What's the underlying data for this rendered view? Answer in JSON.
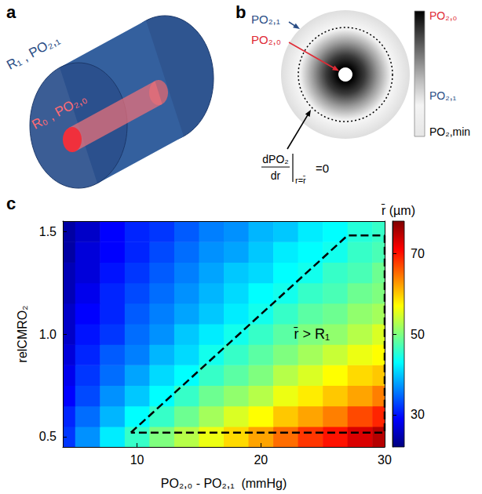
{
  "panel_a": {
    "label": "a",
    "outer_cylinder": "R₁ , PO₂,₁",
    "inner_cylinder": "R₀ , PO₂,₀"
  },
  "panel_b": {
    "label": "b",
    "outer_pointer": "PO₂,₁",
    "inner_pointer": "PO₂,₀",
    "derivative": {
      "numerator": "dPO₂",
      "denominator": "dr",
      "at": "r=r̄",
      "equals": "=0"
    },
    "colorbar_labels": [
      "PO₂,₀",
      "PO₂,₁",
      "PO₂,min"
    ]
  },
  "chart_data": {
    "label": "c",
    "type": "heatmap",
    "x_label": "PO₂,₀ - PO₂,₁  (mmHg)",
    "y_label": "relCMRO₂",
    "x": [
      4,
      6,
      8,
      10,
      12,
      14,
      16,
      18,
      20,
      22,
      24,
      26,
      28,
      30
    ],
    "y": [
      0.5,
      0.6,
      0.7,
      0.8,
      0.9,
      1.0,
      1.1,
      1.2,
      1.3,
      1.4,
      1.5
    ],
    "cells": [
      [
        32,
        37,
        42,
        46,
        50,
        53,
        56,
        59,
        62,
        65,
        68,
        70,
        73,
        75
      ],
      [
        31,
        35,
        39,
        43,
        46,
        49,
        52,
        55,
        57,
        60,
        62,
        64,
        67,
        69
      ],
      [
        29,
        33,
        37,
        40,
        43,
        46,
        49,
        51,
        53,
        56,
        58,
        60,
        62,
        64
      ],
      [
        28,
        32,
        35,
        38,
        41,
        43,
        46,
        48,
        50,
        53,
        55,
        57,
        59,
        60
      ],
      [
        27,
        31,
        34,
        36,
        39,
        41,
        44,
        46,
        48,
        50,
        52,
        54,
        56,
        57
      ],
      [
        26,
        30,
        32,
        35,
        37,
        40,
        42,
        44,
        46,
        48,
        50,
        51,
        53,
        55
      ],
      [
        26,
        29,
        31,
        34,
        36,
        38,
        40,
        42,
        44,
        46,
        48,
        49,
        51,
        52
      ],
      [
        25,
        28,
        31,
        33,
        35,
        37,
        39,
        41,
        43,
        44,
        46,
        47,
        49,
        50
      ],
      [
        25,
        27,
        30,
        32,
        34,
        36,
        38,
        40,
        41,
        43,
        44,
        46,
        47,
        49
      ],
      [
        24,
        27,
        29,
        31,
        33,
        35,
        37,
        38,
        40,
        42,
        43,
        44,
        46,
        47
      ],
      [
        24,
        26,
        29,
        31,
        32,
        34,
        36,
        37,
        39,
        40,
        42,
        43,
        45,
        46
      ]
    ],
    "xlim": [
      4,
      30
    ],
    "xticks": [
      10,
      20,
      30
    ],
    "ylim": [
      0.45,
      1.55
    ],
    "yticks": [
      0.5,
      {
        "value": 1,
        "label": "1.0"
      },
      1.5
    ],
    "colorbar": {
      "label": "r̄ (µm)",
      "range": [
        22,
        78
      ],
      "ticks": [
        30,
        50,
        70
      ]
    },
    "region": {
      "label": "r̄ > R₁",
      "points": [
        [
          9.5,
          0.52
        ],
        [
          27,
          1.48
        ],
        [
          30,
          1.48
        ],
        [
          30,
          0.52
        ]
      ],
      "line_style": "dashed"
    },
    "grid": false
  }
}
